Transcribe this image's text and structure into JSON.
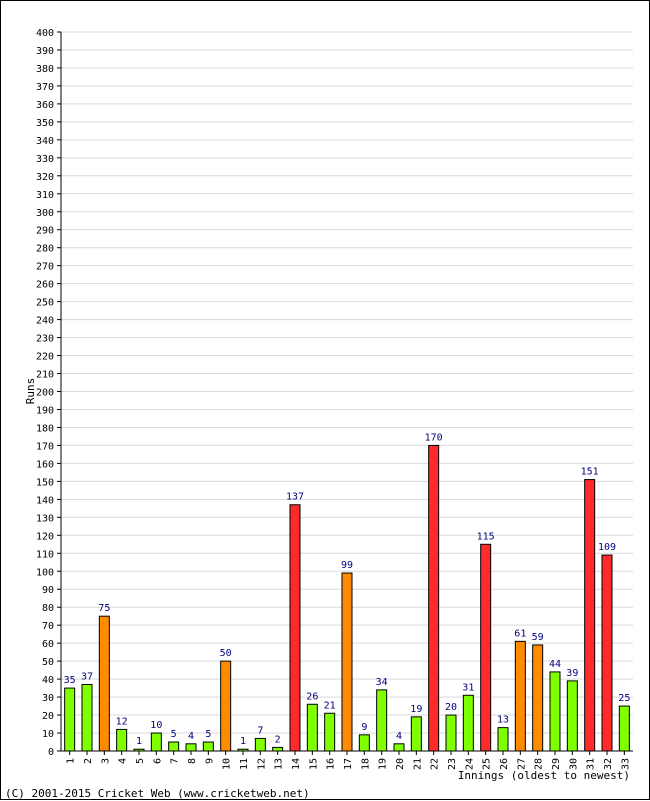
{
  "chart_data": {
    "type": "bar",
    "title": "",
    "xlabel": "Innings (oldest to newest)",
    "ylabel": "Runs",
    "ylim": [
      0,
      400
    ],
    "ytick_step": 10,
    "grid": true,
    "categories": [
      "1",
      "2",
      "3",
      "4",
      "5",
      "6",
      "7",
      "8",
      "9",
      "10",
      "11",
      "12",
      "13",
      "14",
      "15",
      "16",
      "17",
      "18",
      "19",
      "20",
      "21",
      "22",
      "23",
      "24",
      "25",
      "26",
      "27",
      "28",
      "29",
      "30",
      "31",
      "32",
      "33"
    ],
    "values": [
      35,
      37,
      75,
      12,
      1,
      10,
      5,
      4,
      5,
      50,
      1,
      7,
      2,
      137,
      26,
      21,
      99,
      9,
      34,
      4,
      19,
      170,
      20,
      31,
      115,
      13,
      61,
      59,
      44,
      39,
      151,
      109,
      25
    ],
    "colors": {
      "below_50": "#80ff00",
      "fifty": "#ff8c00",
      "hundred": "#ff2a2a",
      "label": "#00007f",
      "grid": "#d9d9d9"
    }
  },
  "footer": {
    "copyright": "(C) 2001-2015 Cricket Web (www.cricketweb.net)"
  }
}
